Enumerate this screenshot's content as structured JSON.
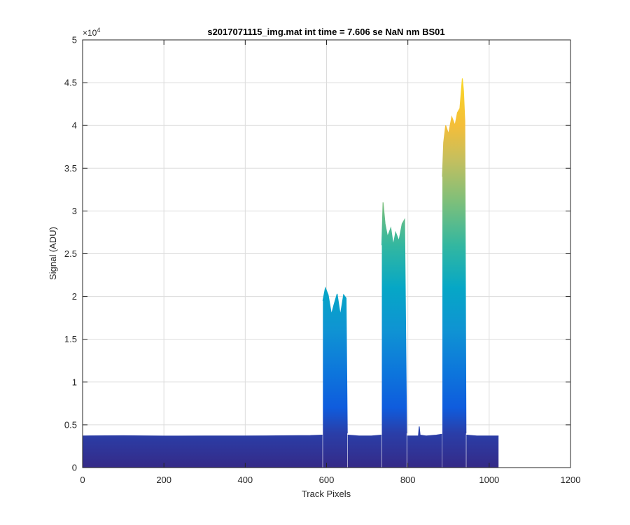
{
  "chart_data": {
    "type": "area",
    "title": "s2017071115_img.mat int time = 7.606 se  NaN nm BS01",
    "xlabel": "Track Pixels",
    "ylabel": "Signal (ADU)",
    "xlim": [
      0,
      1200
    ],
    "ylim": [
      0,
      50000
    ],
    "xticks": [
      0,
      200,
      400,
      600,
      800,
      1000,
      1200
    ],
    "yticks": [
      0,
      0.5,
      1,
      1.5,
      2,
      2.5,
      3,
      3.5,
      4,
      4.5,
      5
    ],
    "xtick_labels": [
      "0",
      "200",
      "400",
      "600",
      "800",
      "1000",
      "1200"
    ],
    "ytick_labels": [
      "0",
      "0.5",
      "1",
      "1.5",
      "2",
      "2.5",
      "3",
      "3.5",
      "4",
      "4.5",
      "5"
    ],
    "y_exponent_label": "×10^4",
    "grid": true,
    "colormap": "parula",
    "baseline": 3700,
    "series": [
      {
        "x": [
          0,
          100,
          200,
          300,
          400,
          500,
          560,
          590
        ],
        "y": [
          3700,
          3720,
          3680,
          3700,
          3690,
          3720,
          3750,
          3800
        ]
      },
      {
        "x": [
          591,
          597,
          604,
          612,
          618,
          626,
          634,
          642,
          648,
          651
        ],
        "y": [
          19500,
          21000,
          20200,
          17900,
          19000,
          20300,
          17800,
          20200,
          19800,
          4000
        ]
      },
      {
        "x": [
          652,
          680,
          710,
          735
        ],
        "y": [
          3800,
          3700,
          3700,
          3800
        ]
      },
      {
        "x": [
          736,
          739,
          744,
          750,
          758,
          764,
          770,
          778,
          786,
          792,
          797
        ],
        "y": [
          26000,
          31000,
          28500,
          27000,
          28000,
          26000,
          27500,
          26500,
          28500,
          29000,
          4000
        ]
      },
      {
        "x": [
          798,
          815,
          826,
          828,
          830,
          845,
          870,
          884
        ],
        "y": [
          3700,
          3700,
          3700,
          4800,
          3800,
          3700,
          3800,
          3900
        ]
      },
      {
        "x": [
          885,
          888,
          893,
          900,
          908,
          916,
          922,
          928,
          934,
          937,
          940,
          943
        ],
        "y": [
          34000,
          38000,
          40000,
          39000,
          41000,
          40000,
          41500,
          42000,
          45500,
          44000,
          40500,
          4000
        ]
      },
      {
        "x": [
          944,
          970,
          1000,
          1023
        ],
        "y": [
          3800,
          3700,
          3700,
          3700
        ]
      }
    ]
  }
}
